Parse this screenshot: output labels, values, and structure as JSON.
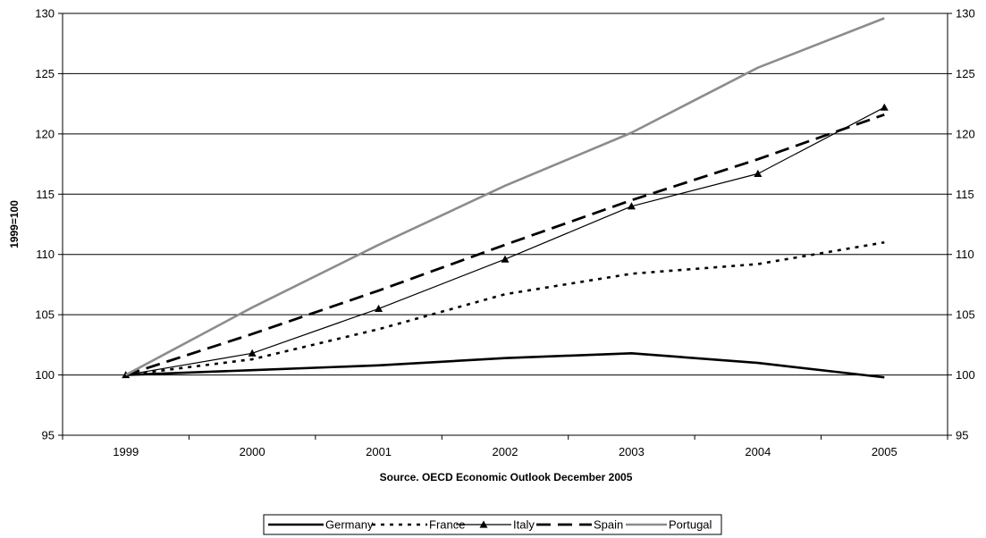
{
  "chart_data": {
    "type": "line",
    "x": [
      "1999",
      "2000",
      "2001",
      "2002",
      "2003",
      "2004",
      "2005"
    ],
    "series": [
      {
        "name": "Germany",
        "values": [
          100,
          100.4,
          100.8,
          101.4,
          101.8,
          101.0,
          99.8
        ],
        "color": "#000000",
        "style": "solid-thick"
      },
      {
        "name": "France",
        "values": [
          100,
          101.3,
          103.8,
          106.7,
          108.4,
          109.2,
          111.0
        ],
        "color": "#000000",
        "style": "dotted"
      },
      {
        "name": "Italy",
        "values": [
          100,
          101.8,
          105.5,
          109.6,
          114.0,
          116.7,
          122.2
        ],
        "color": "#000000",
        "style": "solid-thin-triangle"
      },
      {
        "name": "Spain",
        "values": [
          100,
          103.4,
          107.0,
          110.8,
          114.5,
          117.9,
          121.6
        ],
        "color": "#000000",
        "style": "dashed"
      },
      {
        "name": "Portugal",
        "values": [
          100,
          105.6,
          110.8,
          115.7,
          120.1,
          125.5,
          129.6
        ],
        "color": "#8c8c8c",
        "style": "solid-thick"
      }
    ],
    "ylabel": "1999=100",
    "xlabel": "Source. OECD Economic Outlook December 2005",
    "ylim": [
      95,
      130
    ],
    "yticks": [
      "95",
      "100",
      "105",
      "110",
      "115",
      "120",
      "125",
      "130"
    ],
    "grid": "horizontal",
    "secondary_y_axis": true,
    "legend_position": "bottom"
  }
}
